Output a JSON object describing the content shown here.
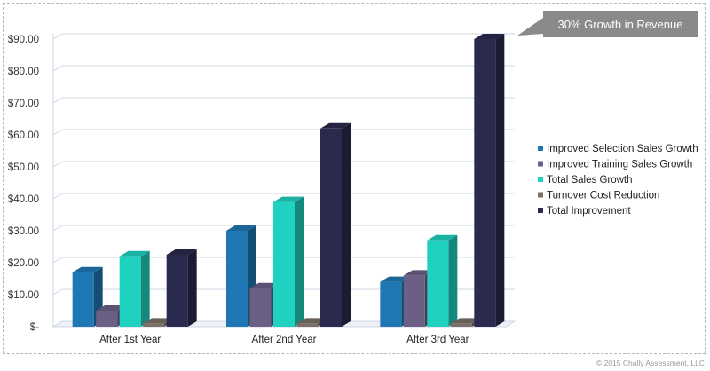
{
  "chart_data": {
    "type": "bar",
    "categories": [
      "After 1st Year",
      "After 2nd Year",
      "After 3rd Year"
    ],
    "series": [
      {
        "name": "Improved Selection Sales Growth",
        "values": [
          17,
          30,
          14
        ],
        "color": "#1f78b4"
      },
      {
        "name": "Improved Training Sales Growth",
        "values": [
          5,
          12,
          16
        ],
        "color": "#6b5f86"
      },
      {
        "name": "Total Sales Growth",
        "values": [
          22,
          39,
          27
        ],
        "color": "#1fd1c0"
      },
      {
        "name": "Turnover Cost Reduction",
        "values": [
          1,
          1,
          1
        ],
        "color": "#7a7068"
      },
      {
        "name": "Total Improvement",
        "values": [
          22.5,
          62,
          90
        ],
        "color": "#2a2a4e"
      }
    ],
    "y_tick_labels": [
      "$-",
      "$10.00",
      "$20.00",
      "$30.00",
      "$40.00",
      "$50.00",
      "$60.00",
      "$70.00",
      "$80.00",
      "$90.00"
    ],
    "ylim": [
      0,
      90
    ],
    "grid": true,
    "legend_position": "right",
    "annotation": "30% Growth in Revenue"
  },
  "footer": {
    "copyright": "© 2015 Chally Assessment, LLC"
  }
}
